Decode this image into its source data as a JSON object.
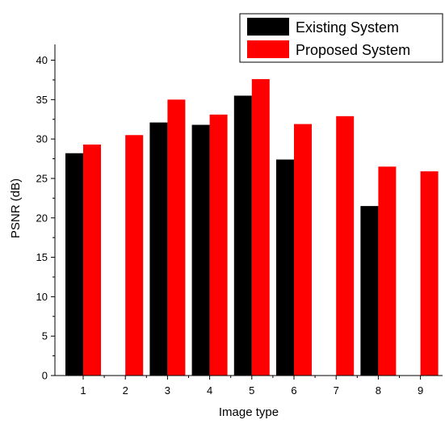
{
  "chart_data": {
    "type": "bar",
    "title": "",
    "xlabel": "Image type",
    "ylabel": "PSNR (dB)",
    "categories": [
      "1",
      "2",
      "3",
      "4",
      "5",
      "6",
      "7",
      "8",
      "9"
    ],
    "ylim": [
      0,
      42
    ],
    "yticks": [
      "0",
      "5",
      "10",
      "15",
      "20",
      "25",
      "30",
      "35",
      "40"
    ],
    "grid": false,
    "legend_position": "top-right",
    "series": [
      {
        "name": "Existing System",
        "color": "#000000",
        "values": [
          28.2,
          0,
          32.1,
          31.8,
          35.5,
          27.4,
          0,
          21.5,
          0
        ]
      },
      {
        "name": "Proposed System",
        "color": "#ff0000",
        "values": [
          29.3,
          30.5,
          35.0,
          33.1,
          37.6,
          31.9,
          32.9,
          26.5,
          25.9
        ]
      }
    ]
  }
}
